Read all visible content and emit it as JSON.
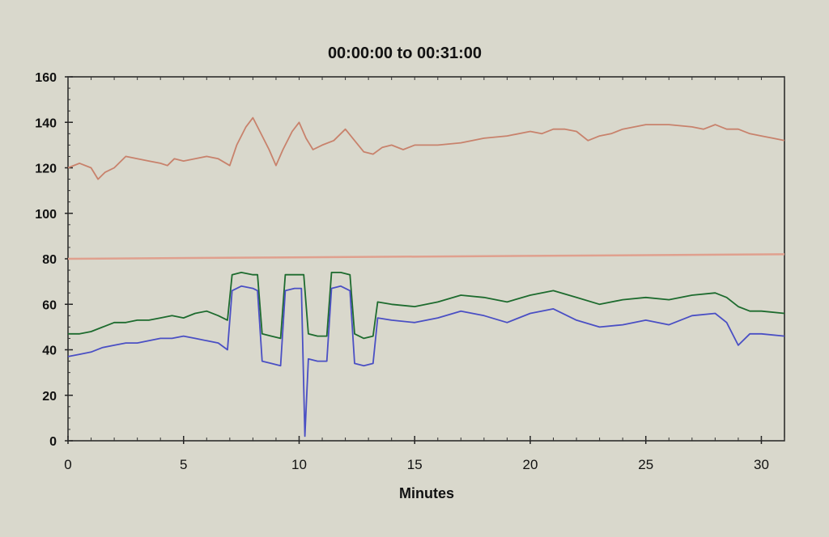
{
  "chart_data": {
    "type": "line",
    "title": "00:00:00 to 00:31:00",
    "xlabel": "Minutes",
    "ylabel": "",
    "xlim": [
      0,
      31
    ],
    "ylim": [
      0,
      160
    ],
    "x_ticks": [
      "0",
      "5",
      "10",
      "15",
      "20",
      "25",
      "30"
    ],
    "y_ticks": [
      "0",
      "20",
      "40",
      "60",
      "80",
      "100",
      "120",
      "140",
      "160"
    ],
    "grid": false,
    "legend": "none",
    "series": [
      {
        "color": "#c8826c",
        "x": [
          0,
          0.5,
          1,
          1.3,
          1.6,
          2,
          2.5,
          3,
          3.5,
          4,
          4.3,
          4.6,
          5,
          5.5,
          6,
          6.5,
          7,
          7.3,
          7.7,
          8,
          8.3,
          8.7,
          9,
          9.3,
          9.7,
          10,
          10.3,
          10.6,
          11,
          11.5,
          12,
          12.4,
          12.8,
          13.2,
          13.6,
          14,
          14.5,
          15,
          16,
          17,
          18,
          19,
          20,
          20.5,
          21,
          21.5,
          22,
          22.5,
          23,
          23.5,
          24,
          25,
          26,
          27,
          27.5,
          28,
          28.5,
          29,
          29.5,
          30,
          30.5,
          31
        ],
        "y": [
          120,
          122,
          120,
          115,
          118,
          120,
          125,
          124,
          123,
          122,
          121,
          124,
          123,
          124,
          125,
          124,
          121,
          130,
          138,
          142,
          136,
          128,
          121,
          128,
          136,
          140,
          133,
          128,
          130,
          132,
          137,
          132,
          127,
          126,
          129,
          130,
          128,
          130,
          130,
          131,
          133,
          134,
          136,
          135,
          137,
          137,
          136,
          132,
          134,
          135,
          137,
          139,
          139,
          138,
          137,
          139,
          137,
          137,
          135,
          134,
          133,
          132
        ]
      },
      {
        "color": "#e0a08e",
        "x": [
          0,
          31
        ],
        "y": [
          80,
          82
        ]
      },
      {
        "color": "#1d6b2e",
        "x": [
          0,
          0.5,
          1,
          1.5,
          2,
          2.5,
          3,
          3.5,
          4,
          4.5,
          5,
          5.5,
          6,
          6.5,
          6.9,
          7.1,
          7.5,
          8,
          8.2,
          8.4,
          8.8,
          9.2,
          9.4,
          9.8,
          10.2,
          10.4,
          10.8,
          11.2,
          11.4,
          11.8,
          12.2,
          12.4,
          12.8,
          13.2,
          13.4,
          14,
          15,
          16,
          17,
          18,
          19,
          20,
          21,
          22,
          23,
          24,
          25,
          26,
          27,
          28,
          28.5,
          29,
          29.5,
          30,
          31
        ],
        "y": [
          47,
          47,
          48,
          50,
          52,
          52,
          53,
          53,
          54,
          55,
          54,
          56,
          57,
          55,
          53,
          73,
          74,
          73,
          73,
          47,
          46,
          45,
          73,
          73,
          73,
          47,
          46,
          46,
          74,
          74,
          73,
          47,
          45,
          46,
          61,
          60,
          59,
          61,
          64,
          63,
          61,
          64,
          66,
          63,
          60,
          62,
          63,
          62,
          64,
          65,
          63,
          59,
          57,
          57,
          56
        ]
      },
      {
        "color": "#4a4fc4",
        "x": [
          0,
          0.5,
          1,
          1.5,
          2,
          2.5,
          3,
          3.5,
          4,
          4.5,
          5,
          5.5,
          6,
          6.5,
          6.9,
          7.1,
          7.5,
          8,
          8.2,
          8.4,
          8.8,
          9.2,
          9.4,
          9.8,
          10.1,
          10.25,
          10.4,
          10.8,
          11.2,
          11.4,
          11.8,
          12.2,
          12.4,
          12.8,
          13.2,
          13.4,
          14,
          15,
          16,
          17,
          18,
          19,
          20,
          21,
          22,
          23,
          24,
          25,
          26,
          27,
          28,
          28.5,
          29,
          29.5,
          30,
          31
        ],
        "y": [
          37,
          38,
          39,
          41,
          42,
          43,
          43,
          44,
          45,
          45,
          46,
          45,
          44,
          43,
          40,
          66,
          68,
          67,
          66,
          35,
          34,
          33,
          66,
          67,
          67,
          2,
          36,
          35,
          35,
          67,
          68,
          66,
          34,
          33,
          34,
          54,
          53,
          52,
          54,
          57,
          55,
          52,
          56,
          58,
          53,
          50,
          51,
          53,
          51,
          55,
          56,
          52,
          42,
          47,
          47,
          46
        ]
      }
    ]
  }
}
